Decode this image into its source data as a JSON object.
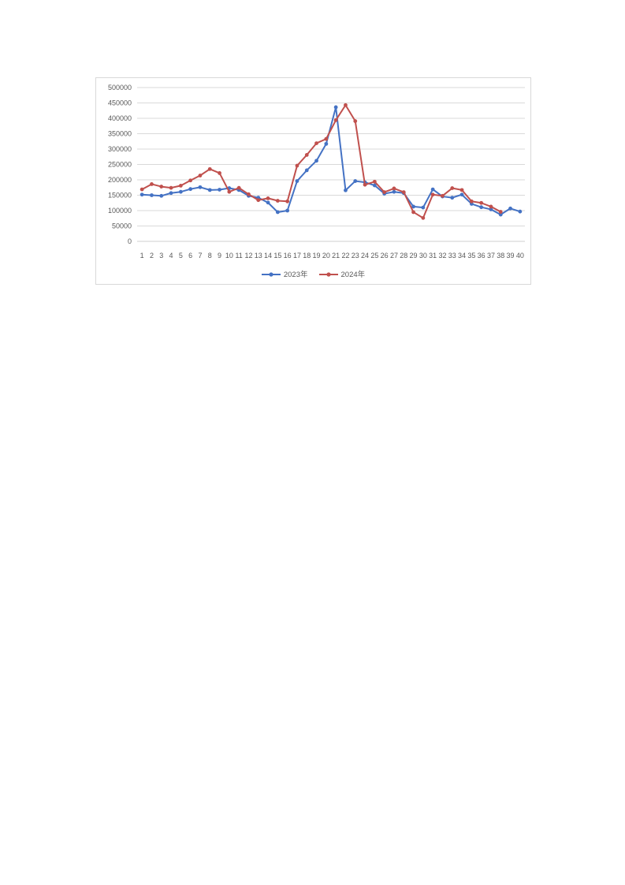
{
  "page": {
    "background_color": "#ffffff",
    "chart_border_color": "#d8d8d8"
  },
  "chart_data": {
    "type": "line",
    "title": "",
    "xlabel": "",
    "ylabel": "",
    "categories": [
      1,
      2,
      3,
      4,
      5,
      6,
      7,
      8,
      9,
      10,
      11,
      12,
      13,
      14,
      15,
      16,
      17,
      18,
      19,
      20,
      21,
      22,
      23,
      24,
      25,
      26,
      27,
      28,
      29,
      30,
      31,
      32,
      33,
      34,
      35,
      36,
      37,
      38,
      39,
      40
    ],
    "series": [
      {
        "name": "2023年",
        "color": "#4472C4",
        "values": [
          152000,
          150000,
          148000,
          157000,
          161000,
          170000,
          176000,
          167000,
          168000,
          173000,
          167000,
          148000,
          142000,
          126000,
          95000,
          100000,
          196000,
          231000,
          262000,
          317000,
          436000,
          166000,
          196000,
          192000,
          182000,
          155000,
          161000,
          157000,
          113000,
          110000,
          169000,
          146000,
          142000,
          152000,
          122000,
          111000,
          104000,
          87000,
          107000,
          97000
        ]
      },
      {
        "name": "2024年",
        "color": "#C0504D",
        "values": [
          169000,
          186000,
          178000,
          174000,
          181000,
          198000,
          214000,
          235000,
          222000,
          161000,
          174000,
          153000,
          134000,
          140000,
          132000,
          130000,
          246000,
          281000,
          319000,
          333000,
          394000,
          443000,
          391000,
          184000,
          194000,
          160000,
          172000,
          160000,
          95000,
          76000,
          152000,
          148000,
          173000,
          167000,
          130000,
          125000,
          113000,
          96000
        ]
      }
    ],
    "ylim": [
      0,
      500000
    ],
    "ytick_step": 50000,
    "ytick_labels": [
      "0",
      "50000",
      "100000",
      "150000",
      "200000",
      "250000",
      "300000",
      "350000",
      "400000",
      "450000",
      "500000"
    ],
    "grid": "horizontal",
    "gridline_color": "#d9d9d9",
    "axis_line_color": "#cfcfcf",
    "axis_text_color": "#595959",
    "legend_position": "bottom",
    "marker": "circle"
  }
}
